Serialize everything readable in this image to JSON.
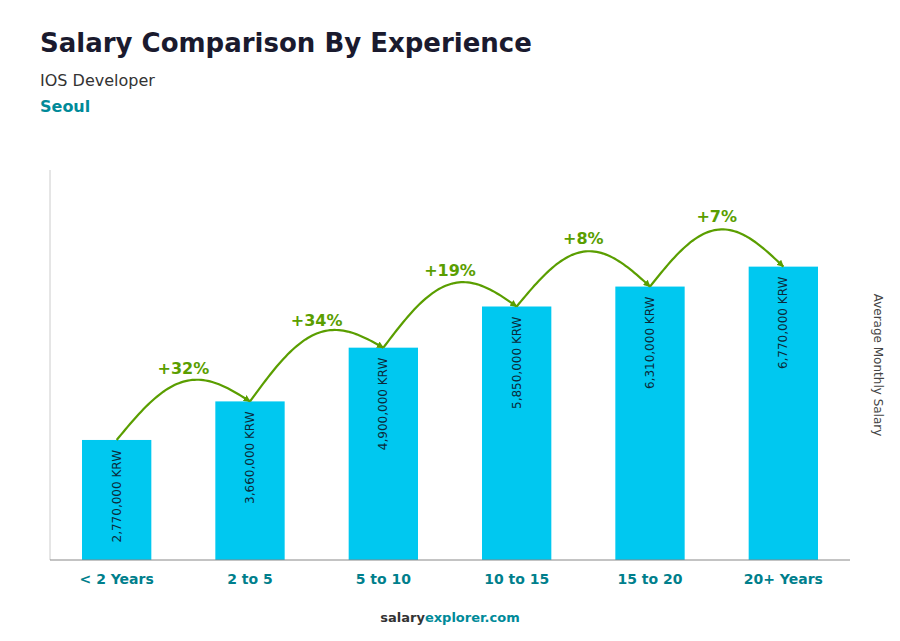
{
  "chart_data": {
    "type": "bar",
    "title": "Salary Comparison By Experience",
    "subtitle": [
      "IOS Developer",
      "Seoul"
    ],
    "categories": [
      "< 2 Years",
      "2 to 5",
      "5 to 10",
      "10 to 15",
      "15 to 20",
      "20+ Years"
    ],
    "values": [
      2770000,
      3660000,
      4900000,
      5850000,
      6310000,
      6770000
    ],
    "value_labels": [
      "2,770,000 KRW",
      "3,660,000 KRW",
      "4,900,000 KRW",
      "5,850,000 KRW",
      "6,310,000 KRW",
      "6,770,000 KRW"
    ],
    "data_labels": true,
    "annotations": [
      "+32%",
      "+34%",
      "+19%",
      "+8%",
      "+7%"
    ],
    "ylabel": "Average Monthly Salary",
    "watermark": [
      "salary",
      "explorer.com"
    ],
    "color": "#00c8f0",
    "ylim": [
      0,
      9000000
    ],
    "yticks": [],
    "tick_labels": "x",
    "grid": false
  }
}
